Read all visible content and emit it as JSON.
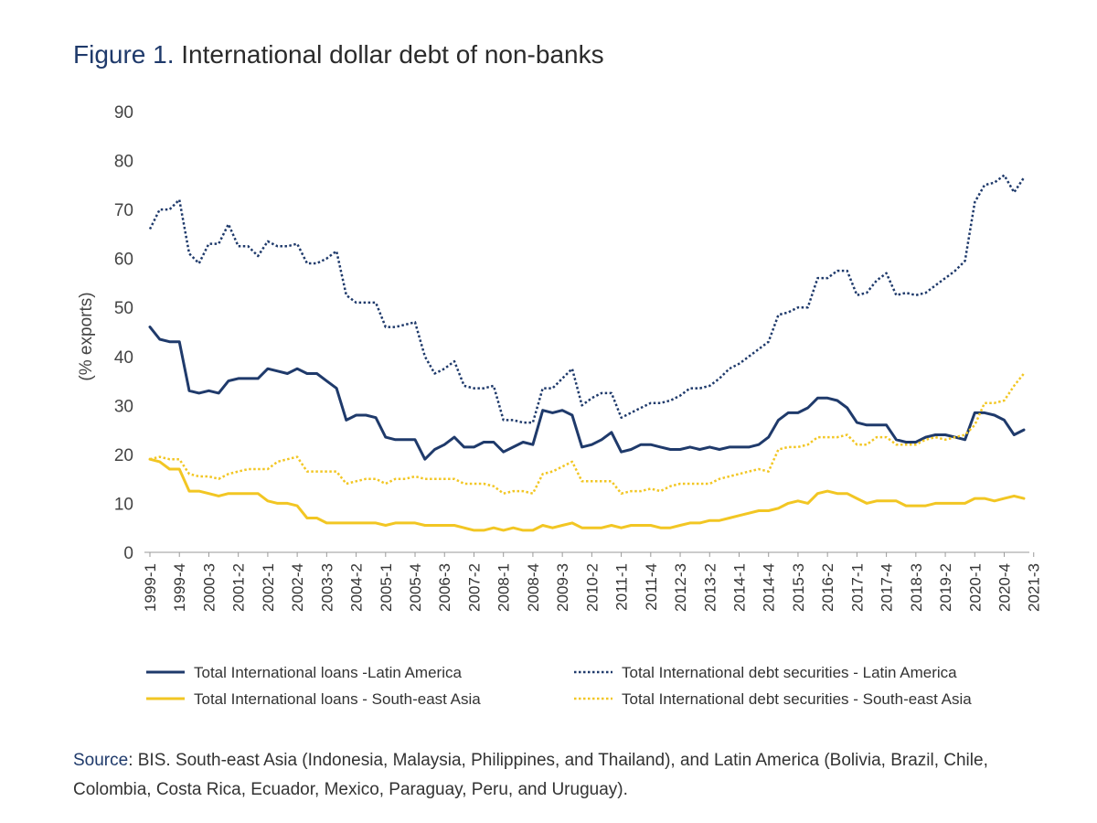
{
  "figure": {
    "label": "Figure 1.",
    "title": "International dollar debt of non-banks"
  },
  "source": {
    "label": "Source",
    "text": ": BIS. South-east Asia (Indonesia, Malaysia, Philippines, and Thailand), and Latin America (Bolivia, Brazil, Chile, Colombia, Costa Rica, Ecuador, Mexico, Paraguay, Peru, and Uruguay)."
  },
  "chart_data": {
    "type": "line",
    "ylabel": "(% exports)",
    "ylim": [
      0,
      90
    ],
    "yticks": [
      0,
      10,
      20,
      30,
      40,
      50,
      60,
      70,
      80,
      90
    ],
    "grid": false,
    "legend_position": "bottom",
    "xtick_labels": [
      "1999-1",
      "1999-4",
      "2000-3",
      "2001-2",
      "2002-1",
      "2002-4",
      "2003-3",
      "2004-2",
      "2005-1",
      "2005-4",
      "2006-3",
      "2007-2",
      "2008-1",
      "2008-4",
      "2009-3",
      "2010-2",
      "2011-1",
      "2011-4",
      "2012-3",
      "2013-2",
      "2014-1",
      "2014-4",
      "2015-3",
      "2016-2",
      "2017-1",
      "2017-4",
      "2018-3",
      "2019-2",
      "2020-1",
      "2020-4",
      "2021-3"
    ],
    "x_start": "1999-1",
    "series": [
      {
        "name": "Total International loans -Latin America",
        "color": "#1f3a6b",
        "style": "solid",
        "values": [
          46,
          43.5,
          43,
          43,
          33,
          32.5,
          33,
          32.5,
          35,
          35.5,
          35.5,
          35.5,
          37.5,
          37,
          36.5,
          37.5,
          36.5,
          36.5,
          35,
          33.5,
          27,
          28,
          28,
          27.5,
          23.5,
          23,
          23,
          23,
          19,
          21,
          22,
          23.5,
          21.5,
          21.5,
          22.5,
          22.5,
          20.5,
          21.5,
          22.5,
          22,
          29,
          28.5,
          29,
          28,
          21.5,
          22,
          23,
          24.5,
          20.5,
          21,
          22,
          22,
          21.5,
          21,
          21,
          21.5,
          21,
          21.5,
          21,
          21.5,
          21.5,
          21.5,
          22,
          23.5,
          27,
          28.5,
          28.5,
          29.5,
          31.5,
          31.5,
          31,
          29.5,
          26.5,
          26,
          26,
          26,
          23,
          22.5,
          22.5,
          23.5,
          24,
          24,
          23.5,
          23,
          28.5,
          28.5,
          28,
          27,
          24,
          25
        ]
      },
      {
        "name": "Total  International debt securities - Latin America",
        "color": "#1f3a6b",
        "style": "dotted",
        "values": [
          66,
          70,
          70,
          72,
          61,
          59,
          63,
          63,
          67,
          62.5,
          62.5,
          60.5,
          63.5,
          62.5,
          62.5,
          63,
          59,
          59,
          60,
          61.5,
          52.5,
          51,
          51,
          51,
          46,
          46,
          46.5,
          47,
          40,
          36.5,
          37.5,
          39,
          34,
          33.5,
          33.5,
          34,
          27,
          27,
          26.5,
          26.5,
          33.5,
          33.5,
          35.5,
          37.5,
          30,
          31.5,
          32.5,
          32.5,
          27.5,
          28.5,
          29.5,
          30.5,
          30.5,
          31,
          32,
          33.5,
          33.5,
          34,
          35.5,
          37.5,
          38.5,
          40,
          41.5,
          43,
          48.5,
          49,
          50,
          50,
          56,
          56,
          57.5,
          57.5,
          52.5,
          53,
          55.5,
          57,
          52.5,
          53,
          52.5,
          53,
          54.5,
          56,
          57.5,
          59.5,
          71.5,
          75,
          75.5,
          77,
          73.5,
          76.5
        ]
      },
      {
        "name": "Total  International  loans - South-east Asia",
        "color": "#f2c623",
        "style": "solid",
        "values": [
          19,
          18.5,
          17,
          17,
          12.5,
          12.5,
          12,
          11.5,
          12,
          12,
          12,
          12,
          10.5,
          10,
          10,
          9.5,
          7,
          7,
          6,
          6,
          6,
          6,
          6,
          6,
          5.5,
          6,
          6,
          6,
          5.5,
          5.5,
          5.5,
          5.5,
          5,
          4.5,
          4.5,
          5,
          4.5,
          5,
          4.5,
          4.5,
          5.5,
          5,
          5.5,
          6,
          5,
          5,
          5,
          5.5,
          5,
          5.5,
          5.5,
          5.5,
          5,
          5,
          5.5,
          6,
          6,
          6.5,
          6.5,
          7,
          7.5,
          8,
          8.5,
          8.5,
          9,
          10,
          10.5,
          10,
          12,
          12.5,
          12,
          12,
          11,
          10,
          10.5,
          10.5,
          10.5,
          9.5,
          9.5,
          9.5,
          10,
          10,
          10,
          10,
          11,
          11,
          10.5,
          11,
          11.5,
          11
        ]
      },
      {
        "name": "Total  International debt securities - South-east Asia",
        "color": "#f2c623",
        "style": "dotted",
        "values": [
          19,
          19.5,
          19,
          19,
          16,
          15.5,
          15.5,
          15,
          16,
          16.5,
          17,
          17,
          17,
          18.5,
          19,
          19.5,
          16.5,
          16.5,
          16.5,
          16.5,
          14,
          14.5,
          15,
          15,
          14,
          15,
          15,
          15.5,
          15,
          15,
          15,
          15,
          14,
          14,
          14,
          13.5,
          12,
          12.5,
          12.5,
          12,
          16,
          16.5,
          17.5,
          18.5,
          14.5,
          14.5,
          14.5,
          14.5,
          12,
          12.5,
          12.5,
          13,
          12.5,
          13.5,
          14,
          14,
          14,
          14,
          15,
          15.5,
          16,
          16.5,
          17,
          16.5,
          21,
          21.5,
          21.5,
          22,
          23.5,
          23.5,
          23.5,
          24,
          22,
          22,
          23.5,
          23.5,
          22,
          22,
          22,
          23,
          23.5,
          23,
          23.5,
          24,
          26,
          30.5,
          30.5,
          31,
          34,
          36.5
        ]
      }
    ]
  }
}
